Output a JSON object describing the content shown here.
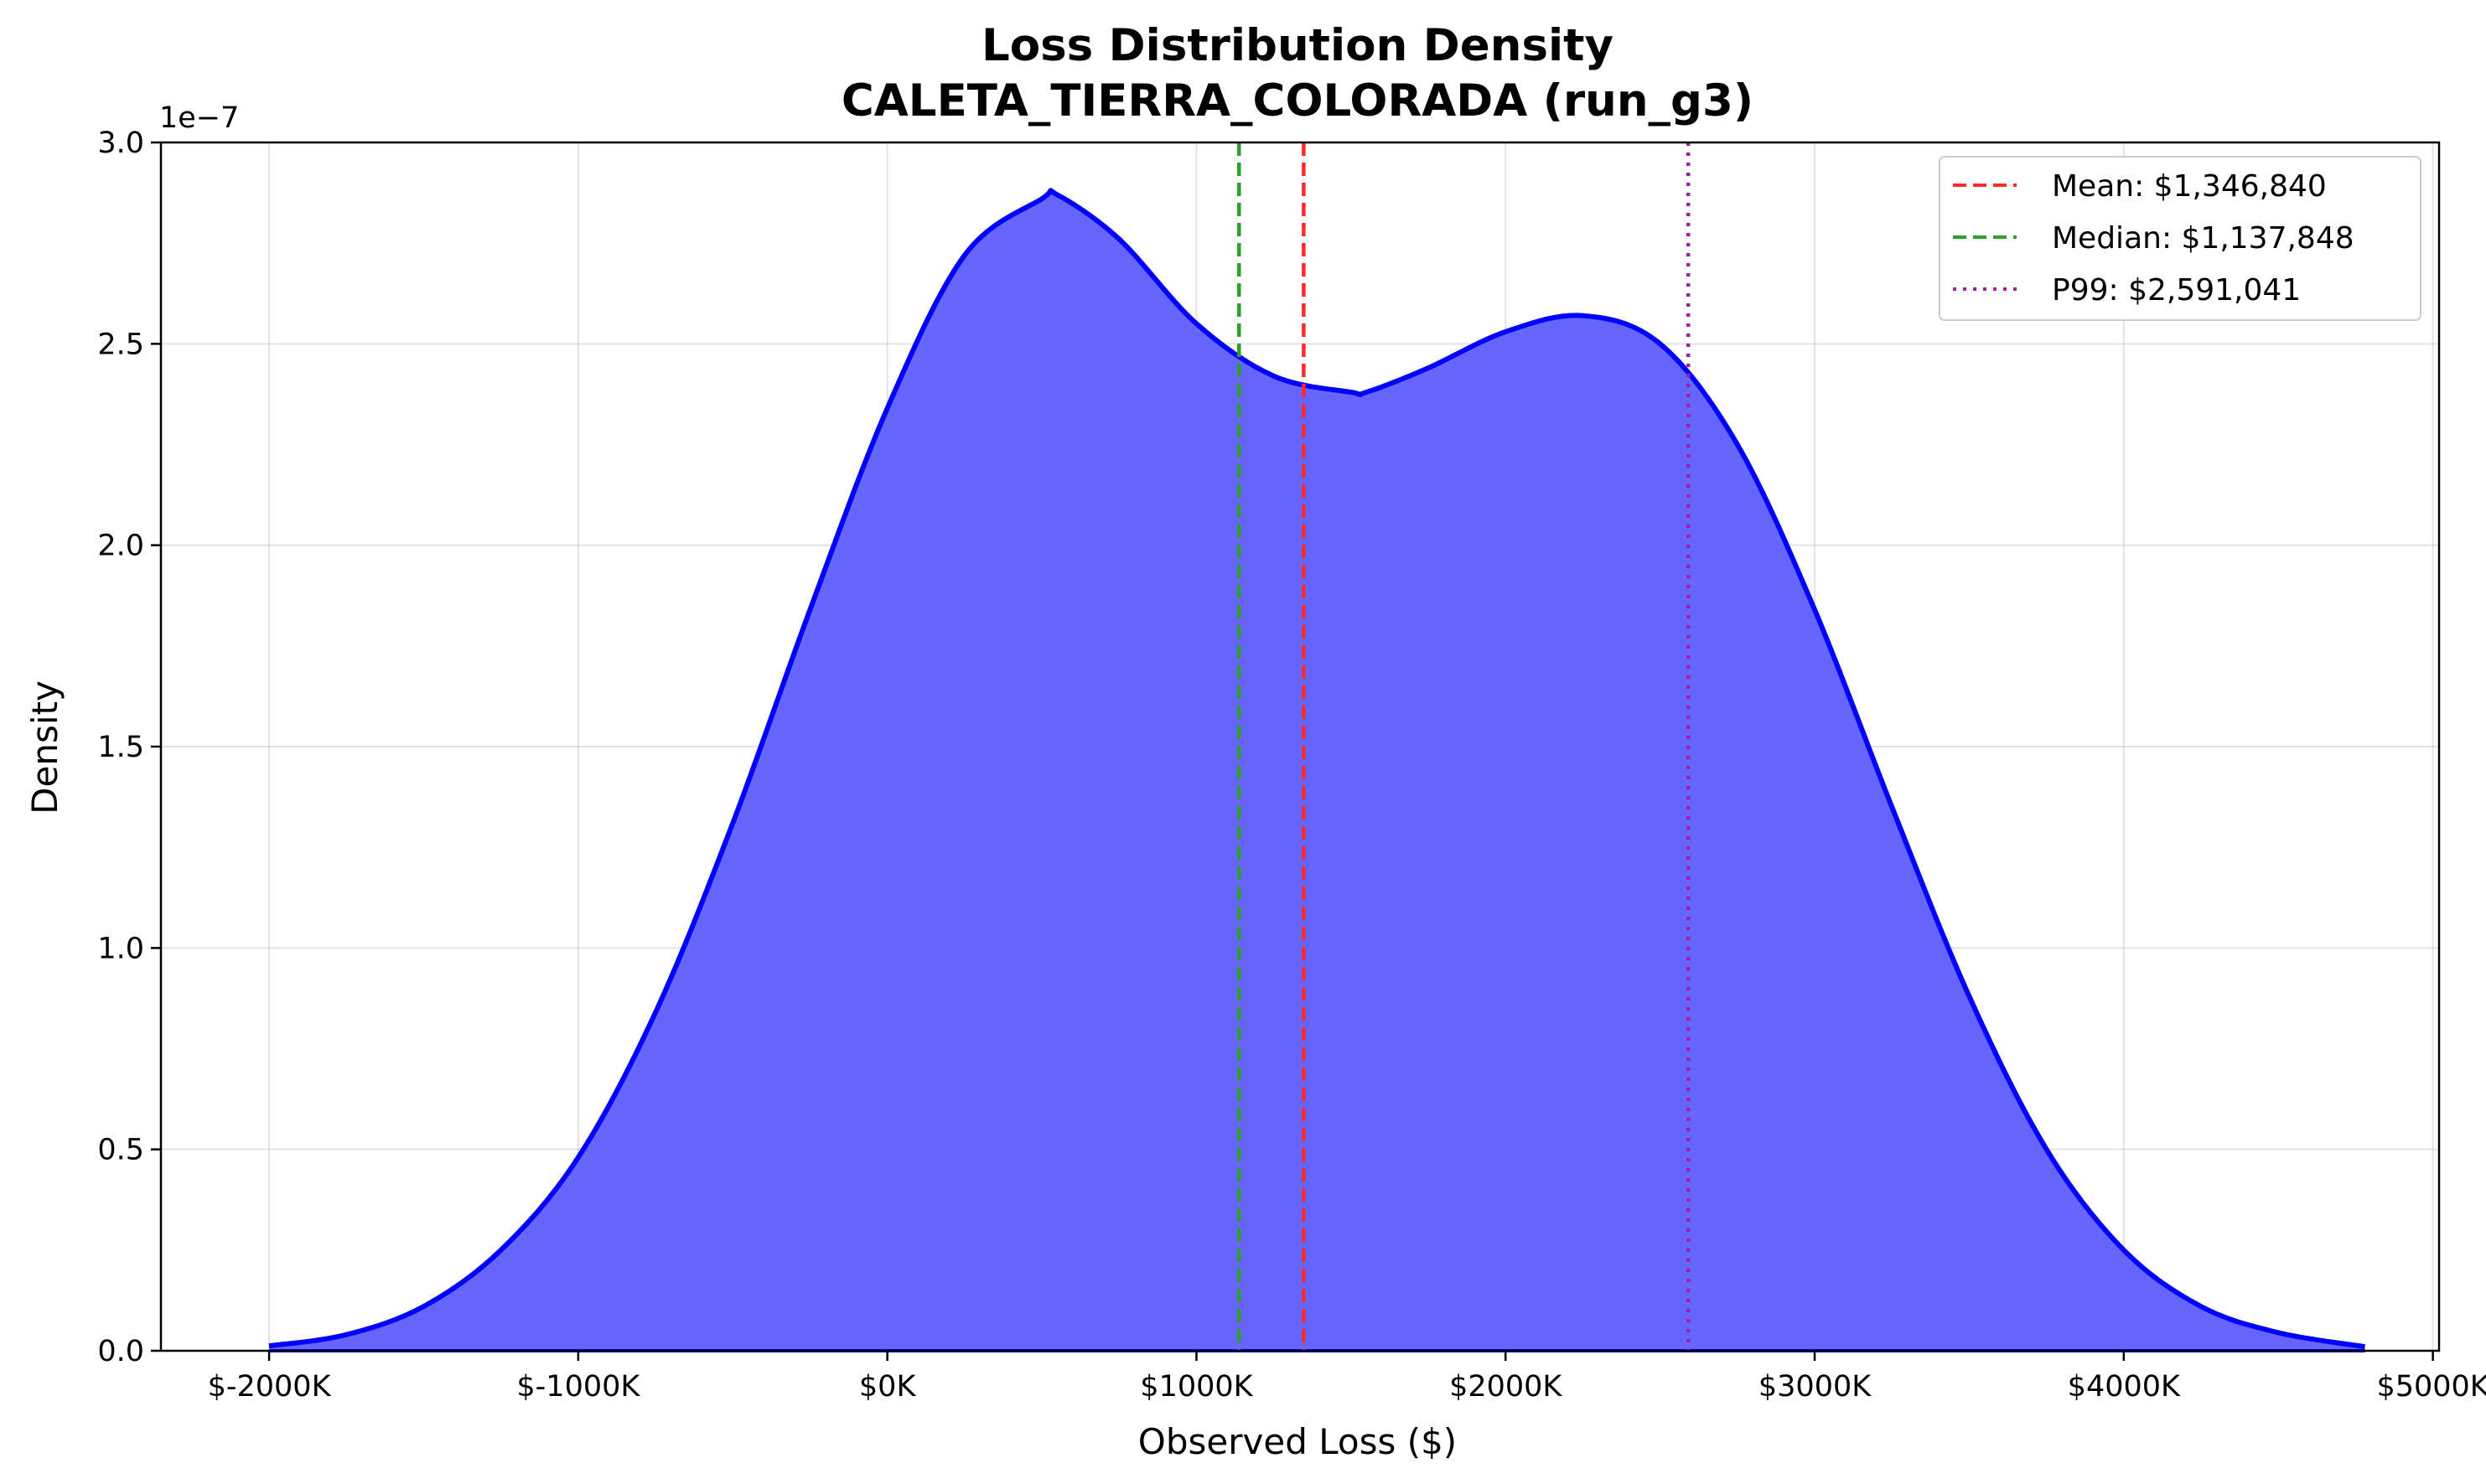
{
  "chart_data": {
    "type": "area",
    "title": "Loss Distribution Density",
    "subtitle": "CALETA_TIERRA_COLORADA (run_g3)",
    "xlabel": "Observed Loss ($)",
    "ylabel": "Density",
    "y_scale_label": "1e−7",
    "xlim": [
      -2350000,
      5020000
    ],
    "ylim": [
      0,
      3e-07
    ],
    "x_ticks": [
      -2000000,
      -1000000,
      0,
      1000000,
      2000000,
      3000000,
      4000000,
      5000000
    ],
    "x_tick_labels": [
      "$-2000K",
      "$-1000K",
      "$0K",
      "$1000K",
      "$2000K",
      "$3000K",
      "$4000K",
      "$5000K"
    ],
    "y_ticks": [
      0,
      5e-08,
      1e-07,
      1.5e-07,
      2e-07,
      2.5e-07,
      3e-07
    ],
    "y_tick_labels": [
      "0.0",
      "0.5",
      "1.0",
      "1.5",
      "2.0",
      "2.5",
      "3.0"
    ],
    "grid": true,
    "legend_position": "top-right",
    "series": [
      {
        "color": "#0000ff",
        "fill_color": "#6666ff",
        "x": [
          -2000000,
          -1750000,
          -1500000,
          -1250000,
          -1000000,
          -750000,
          -500000,
          -250000,
          0,
          250000,
          500000,
          550000,
          750000,
          1000000,
          1250000,
          1500000,
          1550000,
          1750000,
          2000000,
          2250000,
          2500000,
          2750000,
          3000000,
          3250000,
          3500000,
          3750000,
          4000000,
          4250000,
          4500000,
          4780000
        ],
        "y": [
          1.2e-09,
          4e-09,
          1.1e-08,
          2.5e-08,
          4.8e-08,
          8.4e-08,
          1.31e-07,
          1.84e-07,
          2.34e-07,
          2.72e-07,
          2.86e-07,
          2.87e-07,
          2.76e-07,
          2.55e-07,
          2.42e-07,
          2.38e-07,
          2.38e-07,
          2.44e-07,
          2.53e-07,
          2.57e-07,
          2.5e-07,
          2.25e-07,
          1.84e-07,
          1.35e-07,
          8.8e-08,
          5e-08,
          2.5e-08,
          1.1e-08,
          4.5e-09,
          1e-09
        ]
      }
    ],
    "reference_lines": [
      {
        "label": "Mean: $1,346,840",
        "value": 1346840,
        "color": "#ff2a2a",
        "style": "dashed"
      },
      {
        "label": "Median: $1,137,848",
        "value": 1137848,
        "color": "#2ca02c",
        "style": "dashed"
      },
      {
        "label": "P99: $2,591,041",
        "value": 2591041,
        "color": "#a020a0",
        "style": "dotted"
      }
    ]
  }
}
